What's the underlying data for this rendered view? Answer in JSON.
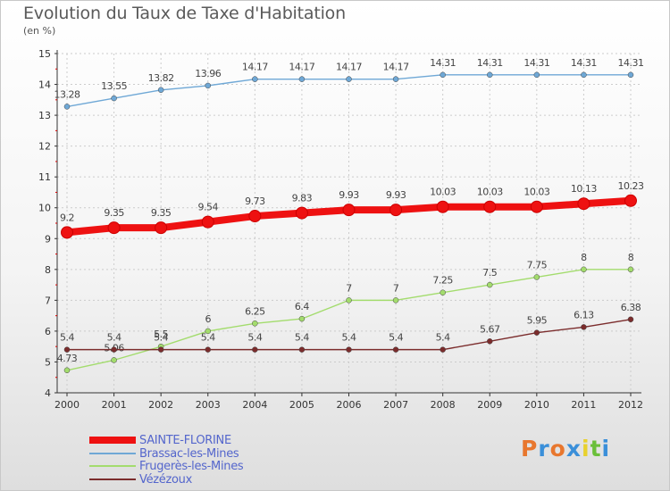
{
  "header": {
    "title": "Evolution du Taux de Taxe d'Habitation",
    "subtitle": "(en %)"
  },
  "brand": {
    "logo_text": "Proxiti",
    "logo_colors": [
      "#e8772e",
      "#3a8fd9",
      "#e8772e",
      "#3a8fd9",
      "#e8d12e",
      "#6abf3a",
      "#3a8fd9"
    ]
  },
  "colors": {
    "SAINTE-FLORINE": "#ee1111",
    "Brassac-les-Mines": "#6fa8d6",
    "Frugerès-les-Mines": "#a3dc6d",
    "Vézézoux": "#7b2c2c",
    "axis": "#333333",
    "tick_accent": "#dd0000",
    "grid": "#cccccc",
    "legend_text": "#5466cc"
  },
  "chart_data": {
    "type": "line",
    "title": "Evolution du Taux de Taxe d'Habitation",
    "ylabel": "(en %)",
    "xlabel": "",
    "x": [
      "2000",
      "2001",
      "2002",
      "2003",
      "2004",
      "2005",
      "2006",
      "2007",
      "2008",
      "2009",
      "2010",
      "2011",
      "2012"
    ],
    "ylim": [
      4,
      15
    ],
    "yticks": [
      "4",
      "5",
      "6",
      "7",
      "8",
      "9",
      "10",
      "11",
      "12",
      "13",
      "14",
      "15"
    ],
    "grid": "horizontal-dashed",
    "legend_position": "bottom-left",
    "series": [
      {
        "name": "Brassac-les-Mines",
        "values": [
          13.28,
          13.55,
          13.82,
          13.96,
          14.17,
          14.17,
          14.17,
          14.17,
          14.31,
          14.31,
          14.31,
          14.31,
          14.31
        ],
        "labels": [
          "13.28",
          "13.55",
          "13.82",
          "13.96",
          "14.17",
          "14.17",
          "14.17",
          "14.17",
          "14.31",
          "14.31",
          "14.31",
          "14.31",
          "14.31"
        ]
      },
      {
        "name": "Frugerès-les-Mines",
        "values": [
          4.73,
          5.06,
          5.5,
          6,
          6.25,
          6.4,
          7,
          7,
          7.25,
          7.5,
          7.75,
          8,
          8
        ],
        "labels": [
          "4.73",
          "5.06",
          "5.5",
          "6",
          "6.25",
          "6.4",
          "7",
          "7",
          "7.25",
          "7.5",
          "7.75",
          "8",
          "8"
        ]
      },
      {
        "name": "Vézézoux",
        "values": [
          5.4,
          5.4,
          5.4,
          5.4,
          5.4,
          5.4,
          5.4,
          5.4,
          5.4,
          5.67,
          5.95,
          6.13,
          6.38
        ],
        "labels": [
          "5.4",
          "5.4",
          "5.4",
          "5.4",
          "5.4",
          "5.4",
          "5.4",
          "5.4",
          "5.4",
          "5.67",
          "5.95",
          "6.13",
          "6.38"
        ]
      },
      {
        "name": "SAINTE-FLORINE",
        "values": [
          9.2,
          9.35,
          9.35,
          9.54,
          9.73,
          9.83,
          9.93,
          9.93,
          10.03,
          10.03,
          10.03,
          10.13,
          10.23
        ],
        "labels": [
          "9.2",
          "9.35",
          "9.35",
          "9.54",
          "9.73",
          "9.83",
          "9.93",
          "9.93",
          "10.03",
          "10.03",
          "10.03",
          "10.13",
          "10.23"
        ]
      }
    ],
    "legend": [
      "SAINTE-FLORINE",
      "Brassac-les-Mines",
      "Frugerès-les-Mines",
      "Vézézoux"
    ]
  }
}
